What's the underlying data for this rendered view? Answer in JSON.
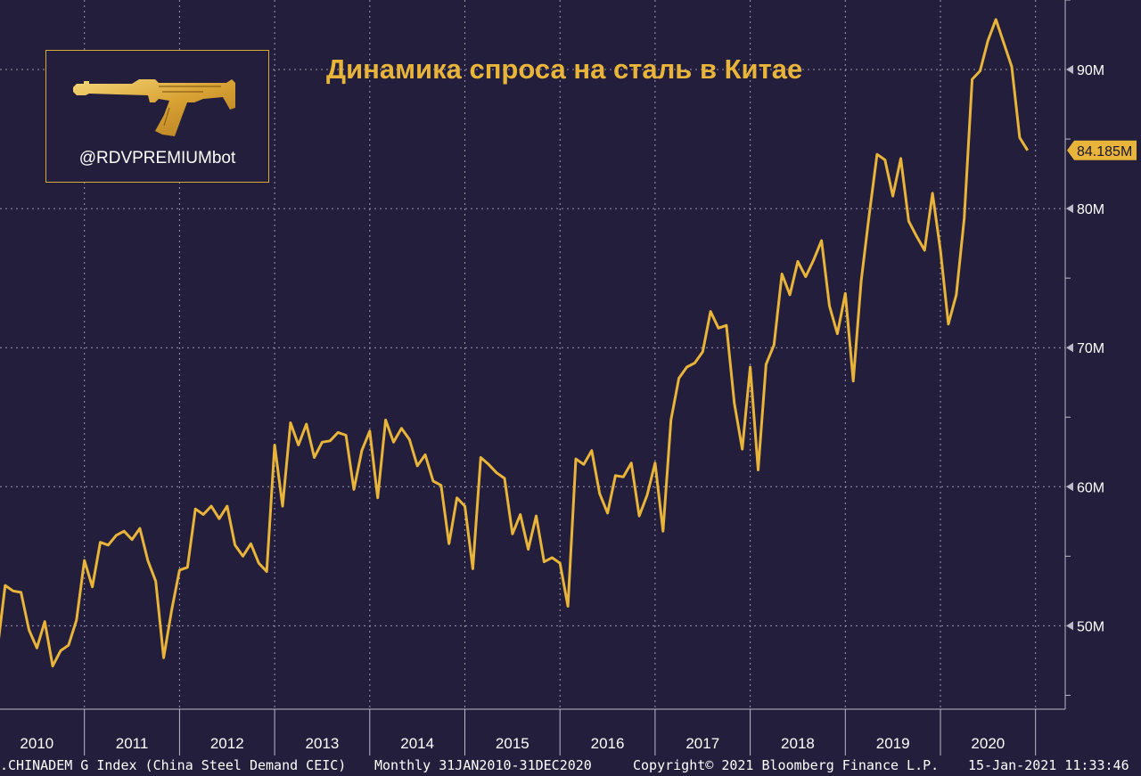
{
  "logo": {
    "handle": "@RDVPREMIUMbot",
    "icon": "rifle-icon"
  },
  "chart_data": {
    "type": "line",
    "title": "Динамика спроса на сталь в Китае",
    "color": "#e8b43a",
    "background": "#221e3c",
    "grid": true,
    "ylim": [
      44,
      95
    ],
    "yticks": [
      50,
      60,
      70,
      80,
      90
    ],
    "ytick_labels": [
      "50M",
      "60M",
      "70M",
      "80M",
      "90M"
    ],
    "xlim": [
      2010.0,
      2021.1
    ],
    "year_labels": [
      "2010",
      "2011",
      "2012",
      "2013",
      "2014",
      "2015",
      "2016",
      "2017",
      "2018",
      "2019",
      "2020"
    ],
    "last_value_label": "84.185M",
    "series": [
      {
        "values": [
          49.3,
          48.2,
          52.9,
          52.5,
          52.4,
          49.7,
          48.4,
          50.3,
          47.1,
          48.2,
          48.6,
          50.4,
          54.7,
          52.8,
          56.0,
          55.8,
          56.5,
          56.8,
          56.2,
          57.0,
          54.7,
          53.2,
          47.7,
          51.1,
          54.0,
          54.2,
          58.4,
          58.0,
          58.6,
          57.7,
          58.6,
          55.8,
          55.0,
          55.9,
          54.5,
          53.9,
          63.0,
          58.6,
          64.6,
          63.0,
          64.5,
          62.1,
          63.2,
          63.3,
          63.9,
          63.7,
          59.8,
          62.6,
          64.0,
          59.2,
          64.8,
          63.2,
          64.2,
          63.4,
          61.5,
          62.3,
          60.4,
          60.1,
          55.9,
          59.2,
          58.6,
          54.1,
          62.1,
          61.6,
          61.0,
          60.6,
          56.6,
          58.0,
          55.5,
          57.9,
          54.6,
          54.9,
          54.5,
          51.4,
          62.0,
          61.6,
          62.6,
          59.5,
          58.1,
          60.8,
          60.7,
          61.7,
          57.9,
          59.4,
          61.7,
          56.8,
          64.8,
          67.8,
          68.6,
          68.9,
          69.7,
          72.6,
          71.4,
          71.6,
          66.0,
          62.7,
          68.6,
          61.2,
          68.8,
          70.2,
          75.3,
          73.8,
          76.2,
          75.1,
          76.3,
          77.7,
          73.0,
          71.0,
          73.9,
          67.6,
          74.8,
          79.5,
          83.9,
          83.5,
          80.9,
          83.6,
          79.1,
          78.0,
          77.0,
          81.1,
          77.0,
          71.7,
          73.8,
          79.3,
          89.3,
          89.9,
          92.1,
          93.6,
          91.9,
          90.2,
          85.1,
          84.185
        ]
      }
    ]
  },
  "footer": {
    "index": ".CHINADEM G Index (China Steel Demand CEIC)",
    "period": "Monthly 31JAN2010-31DEC2020",
    "copyright": "Copyright© 2021 Bloomberg Finance L.P.",
    "timestamp": "15-Jan-2021 11:33:46"
  }
}
